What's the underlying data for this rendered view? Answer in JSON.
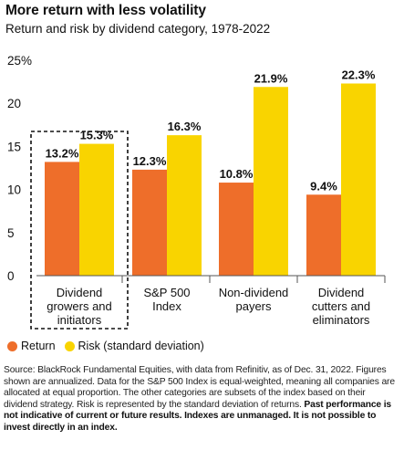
{
  "title": "More return with less volatility",
  "subtitle": "Return and risk by dividend category, 1978-2022",
  "colors": {
    "return": "#ee6e2a",
    "risk": "#f9d400",
    "axis": "#555555",
    "text": "#111111"
  },
  "chart_data": {
    "type": "bar",
    "categories": [
      "Dividend growers and initiators",
      "S&P 500 Index",
      "Non-dividend payers",
      "Dividend cutters and eliminators"
    ],
    "category_lines": [
      [
        "Dividend",
        "growers and",
        "initiators"
      ],
      [
        "S&P 500",
        "Index"
      ],
      [
        "Non-dividend",
        "payers"
      ],
      [
        "Dividend",
        "cutters and",
        "eliminators"
      ]
    ],
    "series": [
      {
        "name": "Return",
        "values": [
          13.2,
          12.3,
          10.8,
          9.4
        ],
        "labels": [
          "13.2%",
          "12.3%",
          "10.8%",
          "9.4%"
        ]
      },
      {
        "name": "Risk (standard deviation)",
        "values": [
          15.3,
          16.3,
          21.9,
          22.3
        ],
        "labels": [
          "15.3%",
          "16.3%",
          "21.9%",
          "22.3%"
        ]
      }
    ],
    "yticks": [
      "0",
      "5",
      "10",
      "15",
      "20",
      "25%"
    ],
    "ytick_values": [
      0,
      5,
      10,
      15,
      20,
      25
    ],
    "ylim": [
      0,
      25
    ],
    "grid": false,
    "legend": "bottom-left",
    "highlighted_category": 0
  },
  "legend": {
    "return_label": "Return",
    "risk_label": "Risk (standard deviation)"
  },
  "source": {
    "text": "Source: BlackRock Fundamental Equities, with data from Refinitiv, as of Dec. 31, 2022. Figures shown are annualized. Data for the S&P 500 Index is equal-weighted, meaning all companies are allocated at equal proportion. The other categories are subsets of the index based on their dividend strategy. Risk is represented by the standard deviation of returns.",
    "bold": "Past performance is not indicative of current or future results. Indexes are unmanaged. It is not possible to invest directly in an index."
  }
}
